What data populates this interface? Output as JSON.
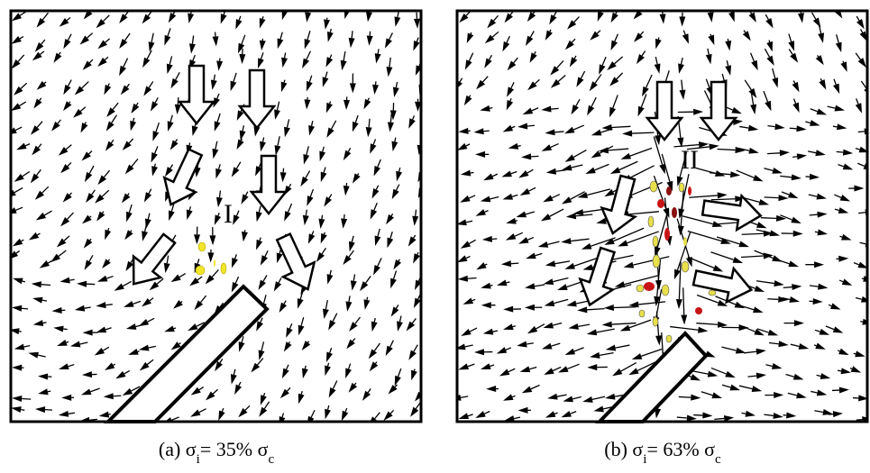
{
  "panels": [
    {
      "zone_label": "I",
      "caption": {
        "prefix": "(a) σ",
        "sub1": "i",
        "middle": "= 35% σ",
        "sub2": "c"
      }
    },
    {
      "zone_label": "II",
      "caption": {
        "prefix": "(b) σ",
        "sub1": "i",
        "middle": "= 63% σ",
        "sub2": "c"
      }
    }
  ]
}
